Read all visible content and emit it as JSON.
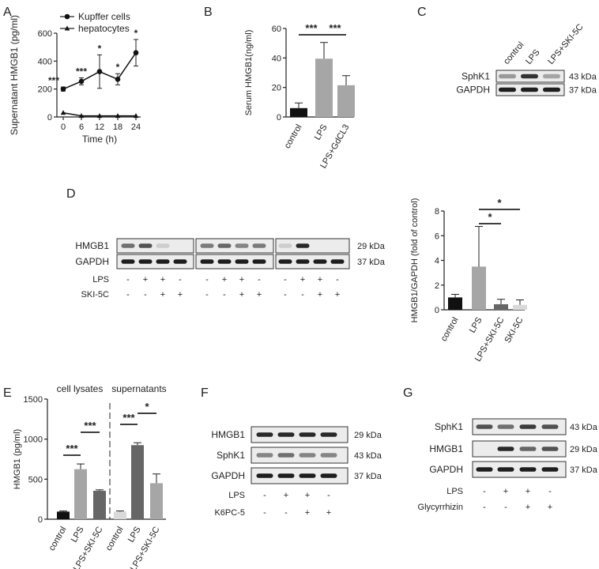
{
  "panels": {
    "a": {
      "letter": "A"
    },
    "b": {
      "letter": "B"
    },
    "c": {
      "letter": "C"
    },
    "d": {
      "letter": "D"
    },
    "e": {
      "letter": "E"
    },
    "f": {
      "letter": "F"
    },
    "g": {
      "letter": "G"
    }
  },
  "chart_data": [
    {
      "id": "A",
      "type": "line",
      "xlabel": "Time (h)",
      "ylabel": "Supernatant HMGB1 (pg/ml)",
      "x": [
        0,
        6,
        12,
        18,
        24
      ],
      "xticks": [
        "0",
        "6",
        "12",
        "18",
        "24"
      ],
      "ylim": [
        0,
        600
      ],
      "yticks": [
        0,
        200,
        400,
        600
      ],
      "legend_position": "top-left",
      "series": [
        {
          "name": "Kupffer cells",
          "marker": "circle",
          "values": [
            200,
            255,
            325,
            270,
            460
          ],
          "errors": [
            15,
            25,
            120,
            40,
            95
          ],
          "significance": [
            "***",
            "***",
            "*",
            "*",
            "*"
          ]
        },
        {
          "name": "hepatocytes",
          "marker": "triangle",
          "values": [
            30,
            8,
            8,
            8,
            8
          ],
          "errors": [
            0,
            0,
            0,
            0,
            0
          ],
          "significance": [
            "",
            "",
            "",
            "",
            ""
          ]
        }
      ]
    },
    {
      "id": "B",
      "type": "bar",
      "categories": [
        "control",
        "LPS",
        "LPS+GdCL3"
      ],
      "values": [
        6,
        39.5,
        21.5
      ],
      "errors": [
        3.5,
        11,
        6.5
      ],
      "colors": [
        "#111111",
        "#a6a6a6",
        "#a6a6a6"
      ],
      "ylabel": "Serum HMGB1(ng/ml)",
      "ylim": [
        0,
        60
      ],
      "yticks": [
        0,
        20,
        40,
        60
      ],
      "brackets": [
        {
          "from": 0,
          "to": 1,
          "label": "***"
        },
        {
          "from": 1,
          "to": 2,
          "label": "***"
        }
      ]
    },
    {
      "id": "D-quant",
      "type": "bar",
      "categories": [
        "control",
        "LPS",
        "LPS+SKI-5C",
        "SKI-5C"
      ],
      "values": [
        1.0,
        3.5,
        0.45,
        0.4
      ],
      "errors": [
        0.25,
        3.25,
        0.4,
        0.4
      ],
      "colors": [
        "#111111",
        "#a6a6a6",
        "#666666",
        "#d9d9d9"
      ],
      "ylabel": "HMGB1/GAPDH (fold of control)",
      "ylim": [
        0,
        8
      ],
      "yticks": [
        0,
        2,
        4,
        6,
        8
      ],
      "brackets": [
        {
          "from": 1,
          "to": 2,
          "label": "*"
        },
        {
          "from": 1,
          "to": 3,
          "label": "*"
        }
      ]
    },
    {
      "id": "E",
      "type": "bar",
      "categories": [
        "control",
        "LPS",
        "LPS+SKI-5C",
        "control",
        "LPS",
        "LPS+SKI-5C"
      ],
      "values": [
        95,
        625,
        355,
        95,
        925,
        450
      ],
      "errors": [
        8,
        65,
        12,
        8,
        30,
        115
      ],
      "colors": [
        "#111111",
        "#a6a6a6",
        "#666666",
        "#d9d9d9",
        "#666666",
        "#a6a6a6"
      ],
      "group_labels": [
        "cell lysates",
        "supernatants"
      ],
      "ylabel": "HMGB1 (pg/ml)",
      "ylim": [
        0,
        1500
      ],
      "yticks": [
        0,
        500,
        1000,
        1500
      ],
      "brackets": [
        {
          "from": 0,
          "to": 1,
          "label": "***"
        },
        {
          "from": 1,
          "to": 2,
          "label": "***"
        },
        {
          "from": 3,
          "to": 4,
          "label": "***"
        },
        {
          "from": 4,
          "to": 5,
          "label": "*"
        }
      ]
    }
  ],
  "blots": {
    "c": {
      "lanes": [
        "control",
        "LPS",
        "LPS+SKI-5C"
      ],
      "rows": [
        {
          "label": "SphK1",
          "size": "43 kDa",
          "intensity": [
            0.35,
            0.85,
            0.3
          ]
        },
        {
          "label": "GAPDH",
          "size": "37 kDa",
          "intensity": [
            0.95,
            0.95,
            0.95
          ]
        }
      ]
    },
    "d": {
      "rows": [
        {
          "label": "HMGB1",
          "size": "29 kDa",
          "intensity": [
            0.55,
            0.7,
            0.1,
            0.05,
            0.5,
            0.6,
            0.45,
            0.5,
            0.1,
            0.9,
            0.05,
            0.05
          ]
        },
        {
          "label": "GAPDH",
          "size": "37 kDa",
          "intensity": [
            0.95,
            0.95,
            0.95,
            0.95,
            0.95,
            0.95,
            0.95,
            0.95,
            0.95,
            0.95,
            0.95,
            0.95
          ]
        }
      ],
      "treatments": [
        {
          "label": "LPS",
          "signs": [
            "-",
            "+",
            "+",
            "-",
            "-",
            "+",
            "+",
            "-",
            "-",
            "+",
            "+",
            "-"
          ]
        },
        {
          "label": "SKI-5C",
          "signs": [
            "-",
            "-",
            "+",
            "+",
            "-",
            "-",
            "+",
            "+",
            "-",
            "-",
            "+",
            "+"
          ]
        }
      ]
    },
    "f": {
      "rows": [
        {
          "label": "HMGB1",
          "size": "29 kDa",
          "intensity": [
            0.9,
            0.9,
            0.9,
            0.9
          ]
        },
        {
          "label": "SphK1",
          "size": "43 kDa",
          "intensity": [
            0.45,
            0.55,
            0.45,
            0.45
          ]
        },
        {
          "label": "GAPDH",
          "size": "37 kDa",
          "intensity": [
            0.95,
            0.95,
            0.95,
            0.95
          ]
        }
      ],
      "treatments": [
        {
          "label": "LPS",
          "signs": [
            "-",
            "+",
            "+",
            "-"
          ]
        },
        {
          "label": "K6PC-5",
          "signs": [
            "-",
            "-",
            "+",
            "+"
          ]
        }
      ]
    },
    "g": {
      "rows": [
        {
          "label": "SphK1",
          "size": "43 kDa",
          "intensity": [
            0.7,
            0.55,
            0.8,
            0.7
          ]
        },
        {
          "label": "HMGB1",
          "size": "29 kDa",
          "intensity": [
            0.05,
            0.9,
            0.6,
            0.7
          ]
        },
        {
          "label": "GAPDH",
          "size": "37 kDa",
          "intensity": [
            0.95,
            0.95,
            0.95,
            0.95
          ]
        }
      ],
      "treatments": [
        {
          "label": "LPS",
          "signs": [
            "-",
            "+",
            "+",
            "-"
          ]
        },
        {
          "label": "Glycyrrhizin",
          "signs": [
            "-",
            "-",
            "+",
            "+"
          ]
        }
      ]
    }
  }
}
